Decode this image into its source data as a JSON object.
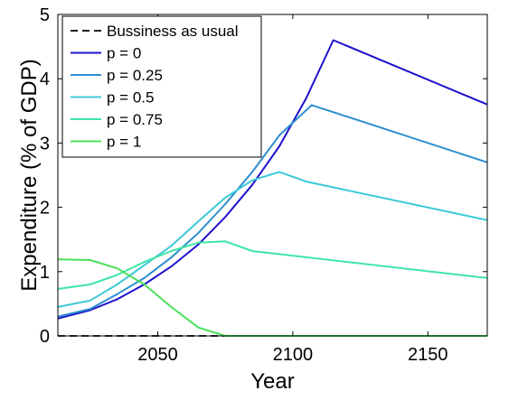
{
  "chart_data": {
    "type": "line",
    "title": "",
    "xlabel": "Year",
    "ylabel": "Expenditure  (% of GDP)",
    "xlim": [
      2013,
      2172
    ],
    "ylim": [
      0,
      5
    ],
    "xticks": [
      2050,
      2100,
      2150
    ],
    "yticks": [
      0,
      1,
      2,
      3,
      4,
      5
    ],
    "xtick_labels": [
      "2050",
      "2100",
      "2150"
    ],
    "ytick_labels": [
      "0",
      "1",
      "2",
      "3",
      "4",
      "5"
    ],
    "grid": false,
    "legend_position": "top-left",
    "series": [
      {
        "name": "Bussiness as usual",
        "color": "#000000",
        "dash": "dashed",
        "x": [
          2013,
          2025,
          2035,
          2045,
          2055,
          2065,
          2075,
          2085,
          2095,
          2105,
          2115,
          2125,
          2135,
          2145,
          2155,
          2165,
          2172
        ],
        "y": [
          0,
          0,
          0,
          0,
          0,
          0,
          0,
          0,
          0,
          0,
          0,
          0,
          0,
          0,
          0,
          0,
          0
        ]
      },
      {
        "name": "p = 0",
        "color": "#1e12cc",
        "dash": "solid",
        "x": [
          2013,
          2025,
          2035,
          2045,
          2055,
          2065,
          2075,
          2085,
          2095,
          2105,
          2115,
          2172
        ],
        "y": [
          0.27,
          0.4,
          0.57,
          0.8,
          1.08,
          1.42,
          1.85,
          2.35,
          2.95,
          3.7,
          4.6,
          3.6
        ]
      },
      {
        "name": "p = 0.25",
        "color": "#2e8fd0",
        "dash": "solid",
        "x": [
          2013,
          2025,
          2035,
          2045,
          2055,
          2065,
          2075,
          2085,
          2095,
          2107,
          2172
        ],
        "y": [
          0.3,
          0.42,
          0.65,
          0.9,
          1.22,
          1.6,
          2.05,
          2.55,
          3.12,
          3.59,
          2.7
        ]
      },
      {
        "name": "p = 0.5",
        "color": "#3cc9d8",
        "dash": "solid",
        "x": [
          2013,
          2025,
          2035,
          2045,
          2055,
          2065,
          2075,
          2085,
          2095,
          2105,
          2172
        ],
        "y": [
          0.45,
          0.55,
          0.8,
          1.1,
          1.4,
          1.78,
          2.15,
          2.42,
          2.55,
          2.4,
          1.8
        ]
      },
      {
        "name": "p = 0.75",
        "color": "#3ee6a6",
        "dash": "solid",
        "x": [
          2013,
          2025,
          2035,
          2045,
          2055,
          2065,
          2075,
          2085,
          2172
        ],
        "y": [
          0.73,
          0.8,
          0.95,
          1.15,
          1.32,
          1.45,
          1.47,
          1.32,
          0.9
        ]
      },
      {
        "name": "p = 1",
        "color": "#48e05a",
        "dash": "solid",
        "x": [
          2013,
          2025,
          2035,
          2045,
          2055,
          2065,
          2075,
          2085,
          2172
        ],
        "y": [
          1.19,
          1.18,
          1.05,
          0.8,
          0.45,
          0.13,
          0.0,
          0.0,
          0.0
        ]
      }
    ]
  }
}
